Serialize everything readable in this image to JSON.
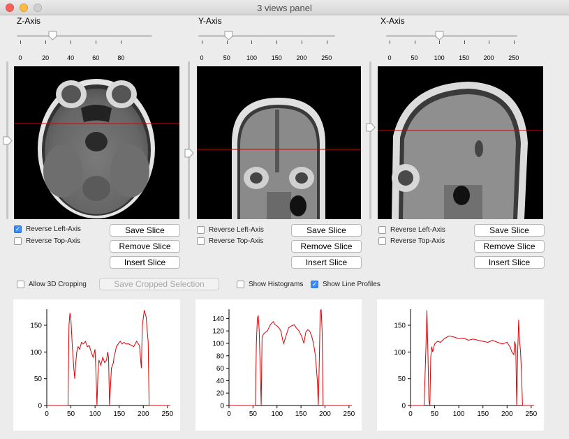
{
  "window": {
    "title": "3 views panel"
  },
  "views": [
    {
      "id": "z",
      "axis_label": "Z-Axis",
      "slider": {
        "min": 0,
        "max": 92,
        "value": 26,
        "ticks": [
          "0",
          "20",
          "40",
          "60",
          "80"
        ]
      },
      "vslider_value": 0.5,
      "checks": [
        {
          "label": "Reverse Left-Axis",
          "checked": true
        },
        {
          "label": "Reverse Top-Axis",
          "checked": false
        }
      ],
      "buttons": {
        "save": "Save Slice",
        "remove": "Remove Slice",
        "insert": "Insert Slice"
      }
    },
    {
      "id": "y",
      "axis_label": "Y-Axis",
      "slider": {
        "min": 0,
        "max": 256,
        "value": 54,
        "ticks": [
          "0",
          "50",
          "100",
          "150",
          "200",
          "250"
        ]
      },
      "vslider_value": 0.58,
      "checks": [
        {
          "label": "Reverse Left-Axis",
          "checked": false
        },
        {
          "label": "Reverse Top-Axis",
          "checked": false
        }
      ],
      "buttons": {
        "save": "Save Slice",
        "remove": "Remove Slice",
        "insert": "Insert Slice"
      }
    },
    {
      "id": "x",
      "axis_label": "X-Axis",
      "slider": {
        "min": 0,
        "max": 256,
        "value": 100,
        "ticks": [
          "0",
          "50",
          "100",
          "150",
          "200",
          "250"
        ]
      },
      "vslider_value": 0.42,
      "checks": [
        {
          "label": "Reverse Left-Axis",
          "checked": false
        },
        {
          "label": "Reverse Top-Axis",
          "checked": false
        }
      ],
      "buttons": {
        "save": "Save Slice",
        "remove": "Remove Slice",
        "insert": "Insert Slice"
      }
    }
  ],
  "options": {
    "allow_3d_cropping": {
      "label": "Allow 3D Cropping",
      "checked": false
    },
    "save_cropped": "Save Cropped Selection",
    "show_histograms": {
      "label": "Show Histograms",
      "checked": false
    },
    "show_line_profiles": {
      "label": "Show Line Profiles",
      "checked": true
    }
  },
  "colors": {
    "profile_line": "#dd0000",
    "crosshair": "#dd0000",
    "checkbox_on": "#3b8df5"
  },
  "chart_data": [
    {
      "type": "line",
      "ylim": [
        0,
        180
      ],
      "yticks": [
        0,
        50,
        100,
        150
      ],
      "xlim": [
        0,
        256
      ],
      "xticks": [
        0,
        50,
        100,
        150,
        200,
        250
      ],
      "series": [
        {
          "x": [
            0,
            44,
            46,
            48,
            50,
            53,
            56,
            58,
            60,
            62,
            65,
            68,
            72,
            76,
            80,
            84,
            88,
            92,
            96,
            100,
            102,
            104,
            106,
            108,
            112,
            116,
            120,
            124,
            126,
            128,
            130,
            134,
            138,
            140,
            142,
            144,
            148,
            152,
            156,
            160,
            164,
            170,
            176,
            180,
            186,
            192,
            194,
            196,
            198,
            202,
            206,
            208,
            210,
            212,
            216,
            256
          ],
          "y": [
            0,
            0,
            150,
            173,
            160,
            110,
            70,
            50,
            80,
            100,
            110,
            105,
            118,
            115,
            120,
            110,
            112,
            100,
            90,
            105,
            60,
            0,
            60,
            85,
            75,
            90,
            80,
            85,
            100,
            90,
            0,
            70,
            80,
            95,
            100,
            110,
            115,
            120,
            115,
            118,
            115,
            115,
            112,
            110,
            120,
            112,
            90,
            70,
            150,
            178,
            165,
            140,
            120,
            0,
            0,
            0
          ]
        }
      ]
    },
    {
      "type": "line",
      "ylim": [
        0,
        155
      ],
      "yticks": [
        0,
        20,
        40,
        60,
        80,
        100,
        120,
        140
      ],
      "xlim": [
        0,
        256
      ],
      "xticks": [
        0,
        50,
        100,
        150,
        200,
        250
      ],
      "series": [
        {
          "x": [
            0,
            55,
            57,
            59,
            61,
            63,
            65,
            67,
            69,
            72,
            76,
            80,
            86,
            92,
            96,
            100,
            104,
            108,
            112,
            114,
            118,
            124,
            130,
            136,
            140,
            146,
            152,
            156,
            160,
            164,
            168,
            172,
            176,
            180,
            184,
            186,
            188,
            190,
            192,
            194,
            196,
            200,
            256
          ],
          "y": [
            0,
            0,
            100,
            140,
            145,
            120,
            60,
            0,
            110,
            115,
            118,
            120,
            130,
            135,
            130,
            128,
            125,
            120,
            105,
            100,
            110,
            125,
            128,
            130,
            125,
            120,
            110,
            100,
            118,
            122,
            120,
            112,
            100,
            80,
            40,
            0,
            70,
            150,
            155,
            120,
            0,
            0,
            0
          ]
        }
      ]
    },
    {
      "type": "line",
      "ylim": [
        0,
        180
      ],
      "yticks": [
        0,
        50,
        100,
        150
      ],
      "xlim": [
        0,
        256
      ],
      "xticks": [
        0,
        50,
        100,
        150,
        200,
        250
      ],
      "series": [
        {
          "x": [
            0,
            28,
            30,
            32,
            34,
            36,
            38,
            40,
            42,
            44,
            46,
            50,
            56,
            62,
            70,
            80,
            90,
            100,
            110,
            120,
            130,
            140,
            150,
            160,
            170,
            180,
            190,
            200,
            206,
            210,
            214,
            216,
            218,
            220,
            222,
            224,
            226,
            228,
            230,
            232,
            256
          ],
          "y": [
            0,
            0,
            50,
            110,
            178,
            100,
            10,
            0,
            90,
            110,
            100,
            115,
            120,
            118,
            125,
            130,
            128,
            125,
            126,
            122,
            124,
            122,
            120,
            118,
            122,
            118,
            115,
            118,
            110,
            100,
            95,
            120,
            110,
            0,
            100,
            160,
            120,
            100,
            60,
            0,
            0
          ]
        }
      ]
    }
  ]
}
